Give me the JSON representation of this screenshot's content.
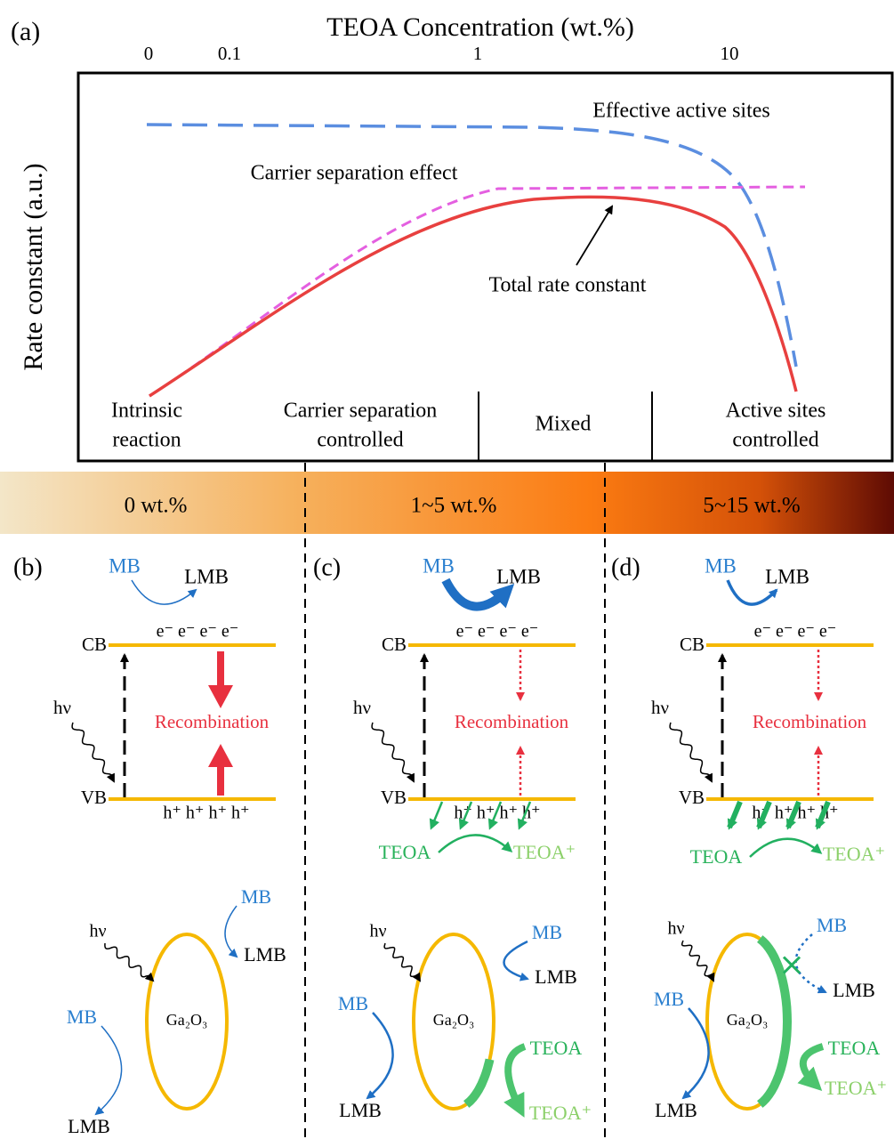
{
  "panel_a": {
    "label": "(a)",
    "x_axis_title": "TEOA Concentration (wt.%)",
    "x_tick_labels": [
      "0",
      "0.1",
      "1",
      "10"
    ],
    "y_axis_title": "Rate constant (a.u.)",
    "curve_labels": {
      "active_sites": "Effective active sites",
      "carrier_separation": "Carrier separation effect",
      "total": "Total rate constant"
    },
    "regions": [
      [
        "Intrinsic",
        "reaction"
      ],
      [
        "Carrier separation",
        "controlled"
      ],
      [
        "Mixed"
      ],
      [
        "Active sites",
        "controlled"
      ]
    ]
  },
  "concentration_bar": [
    "0 wt.%",
    "1~5 wt.%",
    "5~15 wt.%"
  ],
  "panels": [
    {
      "label": "(b)",
      "mb_top": "MB",
      "lmb_top": "LMB",
      "electrons": "e⁻ e⁻ e⁻ e⁻",
      "cb": "CB",
      "vb": "VB",
      "hv_band": "hν",
      "recombination": "Recombination",
      "holes": "h⁺  h⁺ h⁺ h⁺",
      "hv_particle": "hν",
      "particle": "Ga₂O₃",
      "mb_upper": "MB",
      "lmb_upper": "LMB",
      "mb_lower": "MB",
      "lmb_lower": "LMB"
    },
    {
      "label": "(c)",
      "mb_top": "MB",
      "lmb_top": "LMB",
      "electrons": "e⁻ e⁻ e⁻ e⁻",
      "cb": "CB",
      "vb": "VB",
      "hv_band": "hν",
      "recombination": "Recombination",
      "holes": "h⁺ h⁺ h⁺ h⁺",
      "teoa": "TEOA",
      "teoa_plus": "TEOA⁺",
      "hv_particle": "hν",
      "particle": "Ga₂O₃",
      "mb_upper": "MB",
      "lmb_upper": "LMB",
      "mb_lower": "MB",
      "lmb_lower": "LMB",
      "teoa_particle": "TEOA",
      "teoa_plus_particle": "TEOA⁺"
    },
    {
      "label": "(d)",
      "mb_top": "MB",
      "lmb_top": "LMB",
      "electrons": "e⁻ e⁻ e⁻ e⁻",
      "cb": "CB",
      "vb": "VB",
      "hv_band": "hν",
      "recombination": "Recombination",
      "holes": "h⁺ h⁺ h⁺ h⁺",
      "teoa": "TEOA",
      "teoa_plus": "TEOA⁺",
      "hv_particle": "hν",
      "particle": "Ga₂O₃",
      "mb_upper": "MB",
      "lmb_upper": "LMB",
      "mb_lower": "MB",
      "lmb_lower": "LMB",
      "teoa_particle": "TEOA",
      "teoa_plus_particle": "TEOA⁺"
    }
  ]
}
